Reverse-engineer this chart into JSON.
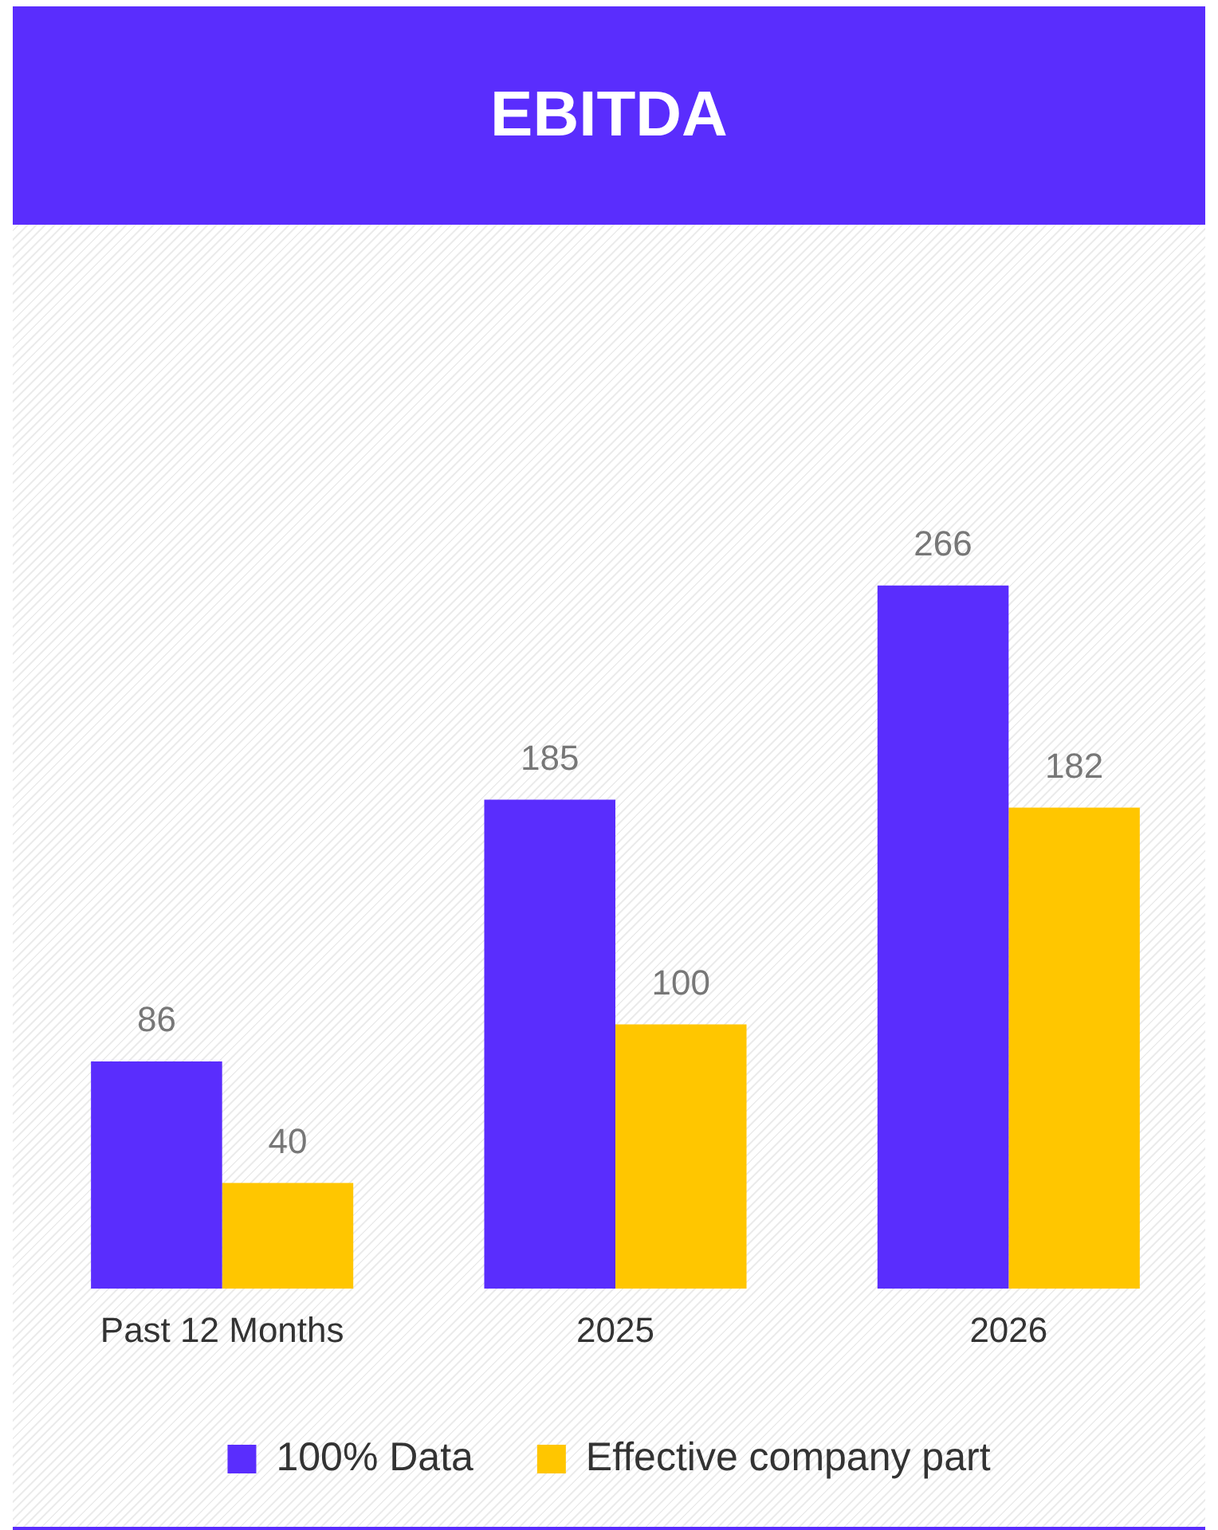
{
  "chart_data": {
    "type": "bar",
    "title": "EBITDA",
    "categories": [
      "Past 12 Months",
      "2025",
      "2026"
    ],
    "series": [
      {
        "name": "100% Data",
        "color": "#5a2dfd",
        "values": [
          86,
          185,
          266
        ]
      },
      {
        "name": "Effective company part",
        "color": "#ffc600",
        "values": [
          40,
          100,
          182
        ]
      }
    ],
    "relative": false,
    "data_labels": true,
    "legend": "bottom",
    "grid": false
  }
}
